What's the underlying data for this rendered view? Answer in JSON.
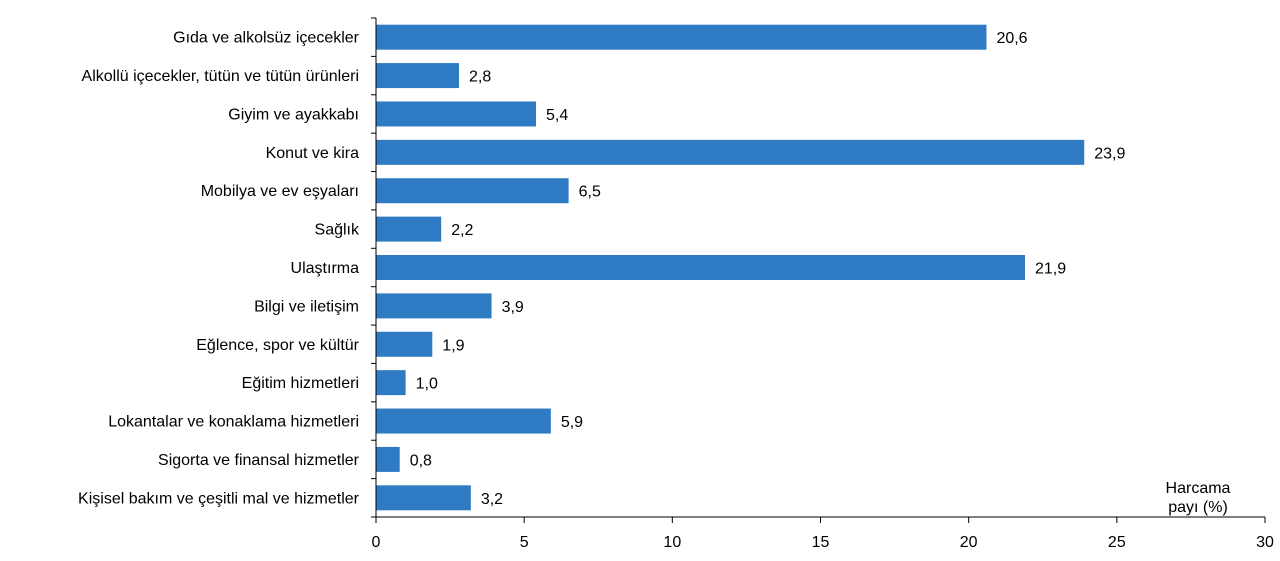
{
  "chart_data": {
    "type": "bar",
    "orientation": "horizontal",
    "categories": [
      "Gıda ve alkolsüz içecekler",
      "Alkollü içecekler, tütün ve tütün ürünleri",
      "Giyim ve ayakkabı",
      "Konut ve kira",
      "Mobilya ve ev eşyaları",
      "Sağlık",
      "Ulaştırma",
      "Bilgi ve iletişim",
      "Eğlence, spor ve kültür",
      "Eğitim hizmetleri",
      "Lokantalar ve konaklama hizmetleri",
      "Sigorta ve finansal hizmetler",
      "Kişisel bakım ve çeşitli mal ve hizmetler"
    ],
    "values": [
      20.6,
      2.8,
      5.4,
      23.9,
      6.5,
      2.2,
      21.9,
      3.9,
      1.9,
      1.0,
      5.9,
      0.8,
      3.2
    ],
    "value_labels": [
      "20,6",
      "2,8",
      "5,4",
      "23,9",
      "6,5",
      "2,2",
      "21,9",
      "3,9",
      "1,9",
      "1,0",
      "5,9",
      "0,8",
      "3,2"
    ],
    "xlim": [
      0,
      30
    ],
    "xticks": [
      0,
      5,
      10,
      15,
      20,
      25,
      30
    ],
    "xlabel_line1": "Harcama",
    "xlabel_line2": "payı (%)",
    "grid": false,
    "bar_color": "#2e7bc4"
  }
}
